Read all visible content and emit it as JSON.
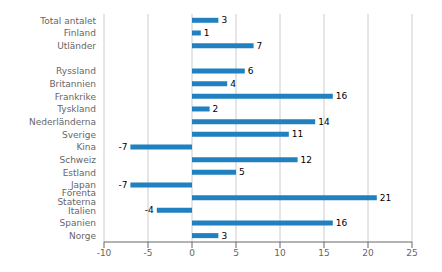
{
  "chart_data": {
    "type": "bar",
    "orientation": "horizontal",
    "categories": [
      "Norge",
      "Spanien",
      "Italien",
      "Förenta Staterna",
      "Japan",
      "Estland",
      "Schweiz",
      "Kina",
      "Sverige",
      "Nederländerna",
      "Tyskland",
      "Frankrike",
      "Britannien",
      "Ryssland",
      null,
      "Utländer",
      "Finland",
      "Total antalet"
    ],
    "values": [
      3,
      16,
      -4,
      21,
      -7,
      5,
      12,
      -7,
      11,
      14,
      2,
      16,
      4,
      6,
      null,
      7,
      1,
      3
    ],
    "color": "#2080c0",
    "xlim": [
      -10,
      25
    ],
    "xticks": [
      -10,
      -5,
      0,
      5,
      10,
      15,
      20,
      25
    ],
    "grid": true,
    "data_labels": true
  }
}
